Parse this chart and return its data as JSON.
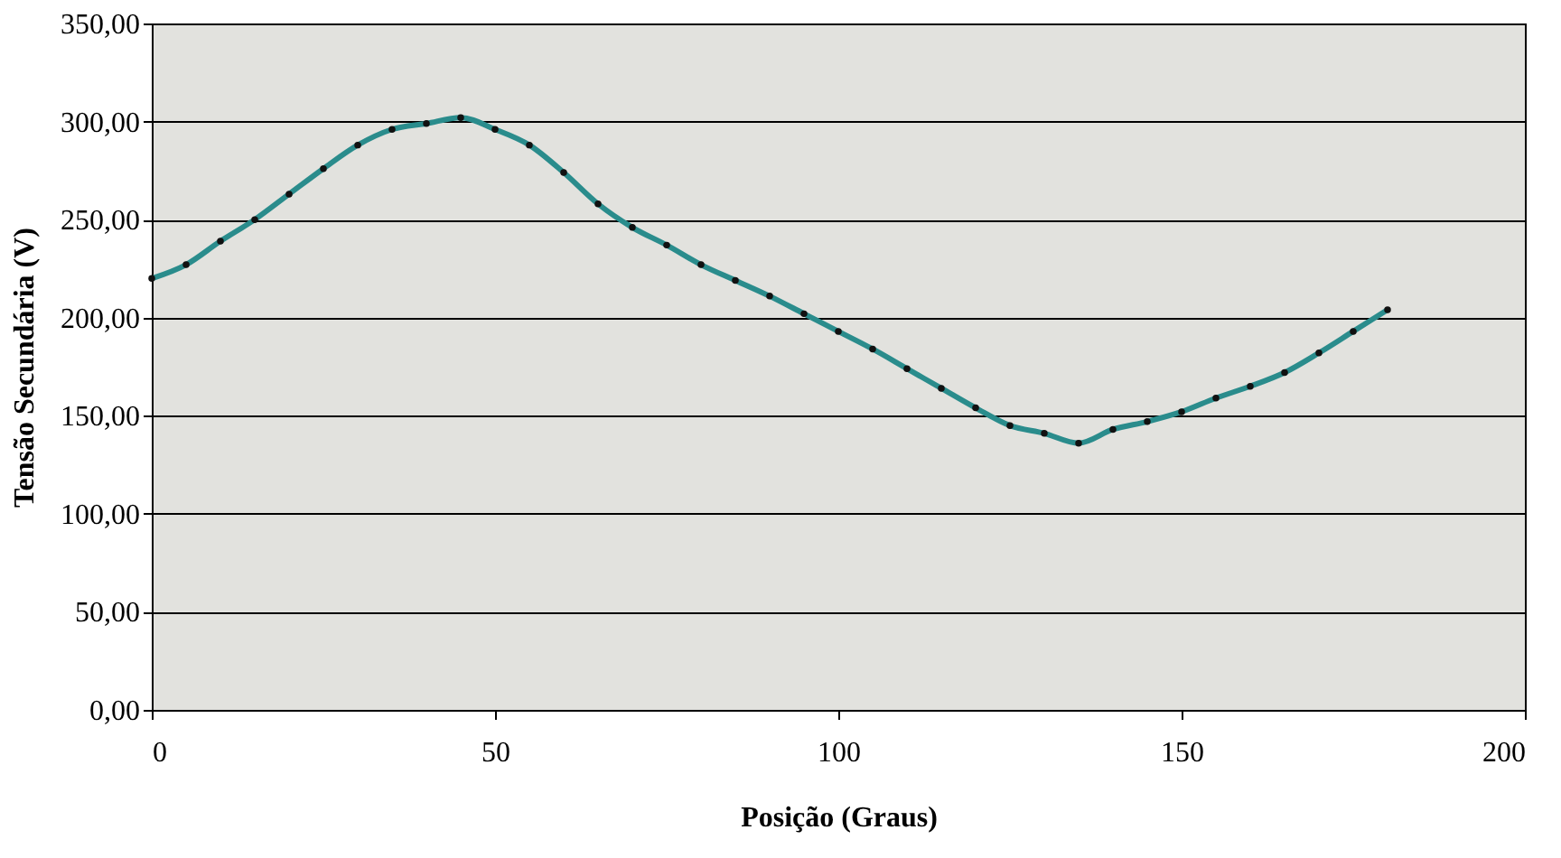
{
  "chart_data": {
    "type": "line",
    "xlabel": "Posição (Graus)",
    "ylabel": "Tensão Secundária (V)",
    "x": [
      0,
      5,
      10,
      15,
      20,
      25,
      30,
      35,
      40,
      45,
      50,
      55,
      60,
      65,
      70,
      75,
      80,
      85,
      90,
      95,
      100,
      105,
      110,
      115,
      120,
      125,
      130,
      135,
      140,
      145,
      150,
      155,
      160,
      165,
      170,
      175,
      180
    ],
    "series": [
      {
        "color": "#2a8c8c",
        "values": [
          220,
          227,
          239,
          250,
          263,
          276,
          288,
          296,
          299,
          302,
          296,
          288,
          274,
          258,
          246,
          237,
          227,
          219,
          211,
          202,
          193,
          184,
          174,
          164,
          154,
          145,
          141,
          136,
          143,
          147,
          152,
          159,
          165,
          172,
          182,
          193,
          204
        ]
      }
    ],
    "xlim": [
      0,
      200
    ],
    "xticks": [
      0,
      50,
      100,
      150,
      200
    ],
    "ylim": [
      0,
      350
    ],
    "yticks": [
      {
        "value": 0,
        "label": "0,00"
      },
      {
        "value": 50,
        "label": "50,00"
      },
      {
        "value": 100,
        "label": "100,00"
      },
      {
        "value": 150,
        "label": "150,00"
      },
      {
        "value": 200,
        "label": "200,00"
      },
      {
        "value": 250,
        "label": "250,00"
      },
      {
        "value": 300,
        "label": "300,00"
      },
      {
        "value": 350,
        "label": "350,00"
      }
    ],
    "grid": "y",
    "marker": "circle",
    "line_style": "solid"
  }
}
